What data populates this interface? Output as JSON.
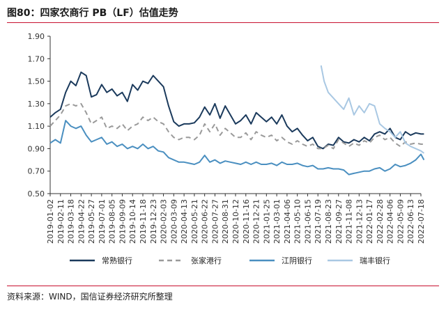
{
  "title": "图80：四家农商行 PB（LF）估值走势",
  "source": "资料来源：WIND，国信证券经济研究所整理",
  "chart_data": {
    "type": "line",
    "title": "图80：四家农商行 PB（LF）估值走势",
    "xlabel": "",
    "ylabel": "",
    "ylim": [
      0.5,
      1.9
    ],
    "yticks": [
      "0.50",
      "0.70",
      "0.90",
      "1.10",
      "1.30",
      "1.50",
      "1.70",
      "1.90"
    ],
    "grid": false,
    "legend_position": "bottom",
    "x_ticks": [
      "2019-01-02",
      "2019-02-11",
      "2019-03-18",
      "2019-04-22",
      "2019-05-27",
      "2019-07-01",
      "2019-08-05",
      "2019-09-09",
      "2019-10-14",
      "2019-11-18",
      "2019-12-23",
      "2020-02-03",
      "2020-03-09",
      "2020-04-13",
      "2020-05-21",
      "2020-06-22",
      "2020-07-27",
      "2020-08-31",
      "2020-10-12",
      "2020-11-16",
      "2020-12-21",
      "2021-01-25",
      "2021-03-01",
      "2021-04-06",
      "2021-05-10",
      "2021-06-15",
      "2021-07-19",
      "2021-08-23",
      "2021-09-27",
      "2021-11-08",
      "2021-12-13",
      "2022-01-17",
      "2022-02-28",
      "2022-04-06",
      "2022-05-09",
      "2022-06-13",
      "2022-07-18"
    ],
    "series": [
      {
        "name": "常熟银行",
        "color": "#1b3a5c",
        "dash": "solid",
        "x": [
          0,
          0.5,
          1,
          1.5,
          2,
          2.5,
          3,
          3.5,
          4,
          4.5,
          5,
          5.5,
          6,
          6.5,
          7,
          7.5,
          8,
          8.5,
          9,
          9.5,
          10,
          10.5,
          11,
          11.5,
          12,
          12.5,
          13,
          13.5,
          14,
          14.5,
          15,
          15.5,
          16,
          16.5,
          17,
          17.5,
          18,
          18.5,
          19,
          19.5,
          20,
          20.5,
          21,
          21.5,
          22,
          22.5,
          23,
          23.5,
          24,
          24.5,
          25,
          25.5,
          26,
          26.5,
          27,
          27.5,
          28,
          28.5,
          29,
          29.5,
          30,
          30.5,
          31,
          31.5,
          32,
          32.5,
          33,
          33.5,
          34,
          34.5,
          35,
          35.5,
          36,
          36.3
        ],
        "y": [
          1.18,
          1.22,
          1.25,
          1.4,
          1.5,
          1.46,
          1.58,
          1.55,
          1.36,
          1.38,
          1.47,
          1.4,
          1.43,
          1.37,
          1.4,
          1.32,
          1.47,
          1.42,
          1.5,
          1.48,
          1.55,
          1.5,
          1.45,
          1.28,
          1.14,
          1.1,
          1.12,
          1.12,
          1.13,
          1.18,
          1.27,
          1.2,
          1.3,
          1.17,
          1.28,
          1.2,
          1.12,
          1.15,
          1.2,
          1.12,
          1.22,
          1.18,
          1.14,
          1.18,
          1.12,
          1.2,
          1.1,
          1.05,
          1.08,
          1.02,
          0.97,
          1.0,
          0.92,
          0.9,
          0.94,
          0.93,
          1.0,
          0.96,
          0.95,
          0.98,
          0.96,
          1.0,
          0.97,
          1.03,
          1.05,
          1.03,
          1.08,
          1.0,
          0.98,
          1.05,
          1.02,
          1.04,
          1.03,
          1.03
        ]
      },
      {
        "name": "张家港行",
        "color": "#9a9a9a",
        "dash": "dashed",
        "x": [
          0,
          0.5,
          1,
          1.5,
          2,
          2.5,
          3,
          3.5,
          4,
          4.5,
          5,
          5.5,
          6,
          6.5,
          7,
          7.5,
          8,
          8.5,
          9,
          9.5,
          10,
          10.5,
          11,
          11.5,
          12,
          12.5,
          13,
          13.5,
          14,
          14.5,
          15,
          15.5,
          16,
          16.5,
          17,
          17.5,
          18,
          18.5,
          19,
          19.5,
          20,
          20.5,
          21,
          21.5,
          22,
          22.5,
          23,
          23.5,
          24,
          24.5,
          25,
          25.5,
          26,
          26.5,
          27,
          27.5,
          28,
          28.5,
          29,
          29.5,
          30,
          30.5,
          31,
          31.5,
          32,
          32.5,
          33,
          33.5,
          34,
          34.5,
          35,
          35.5,
          36,
          36.3
        ],
        "y": [
          1.1,
          1.15,
          1.2,
          1.28,
          1.3,
          1.28,
          1.3,
          1.22,
          1.12,
          1.15,
          1.18,
          1.08,
          1.1,
          1.08,
          1.12,
          1.06,
          1.1,
          1.12,
          1.18,
          1.15,
          1.18,
          1.14,
          1.12,
          1.05,
          1.0,
          0.98,
          1.0,
          1.0,
          0.98,
          1.02,
          1.12,
          1.05,
          1.12,
          1.02,
          1.08,
          1.04,
          1.0,
          1.0,
          1.04,
          0.98,
          1.05,
          1.02,
          1.0,
          1.02,
          0.97,
          1.0,
          0.96,
          0.94,
          0.97,
          0.94,
          0.92,
          0.94,
          0.9,
          0.9,
          0.93,
          0.9,
          0.98,
          0.95,
          0.92,
          0.95,
          0.93,
          0.97,
          0.95,
          1.0,
          1.02,
          0.98,
          1.0,
          0.95,
          0.92,
          0.96,
          0.94,
          0.95,
          0.94,
          0.94
        ]
      },
      {
        "name": "江阴银行",
        "color": "#4a8fc0",
        "dash": "solid",
        "x": [
          0,
          0.5,
          1,
          1.5,
          2,
          2.5,
          3,
          3.5,
          4,
          4.5,
          5,
          5.5,
          6,
          6.5,
          7,
          7.5,
          8,
          8.5,
          9,
          9.5,
          10,
          10.5,
          11,
          11.5,
          12,
          12.5,
          13,
          13.5,
          14,
          14.5,
          15,
          15.5,
          16,
          16.5,
          17,
          17.5,
          18,
          18.5,
          19,
          19.5,
          20,
          20.5,
          21,
          21.5,
          22,
          22.5,
          23,
          23.5,
          24,
          24.5,
          25,
          25.5,
          26,
          26.5,
          27,
          27.5,
          28,
          28.5,
          29,
          29.5,
          30,
          30.5,
          31,
          31.5,
          32,
          32.5,
          33,
          33.5,
          34,
          34.5,
          35,
          35.5,
          36,
          36.3
        ],
        "y": [
          0.95,
          0.98,
          0.95,
          1.15,
          1.1,
          1.08,
          1.1,
          1.02,
          0.96,
          0.98,
          1.0,
          0.94,
          0.96,
          0.92,
          0.94,
          0.9,
          0.92,
          0.9,
          0.94,
          0.9,
          0.92,
          0.88,
          0.87,
          0.82,
          0.8,
          0.78,
          0.78,
          0.77,
          0.76,
          0.78,
          0.84,
          0.78,
          0.8,
          0.77,
          0.79,
          0.78,
          0.77,
          0.76,
          0.78,
          0.76,
          0.78,
          0.76,
          0.76,
          0.77,
          0.75,
          0.78,
          0.76,
          0.76,
          0.77,
          0.75,
          0.74,
          0.75,
          0.72,
          0.72,
          0.73,
          0.72,
          0.72,
          0.71,
          0.67,
          0.68,
          0.69,
          0.7,
          0.7,
          0.72,
          0.73,
          0.7,
          0.72,
          0.76,
          0.74,
          0.75,
          0.77,
          0.8,
          0.85,
          0.8
        ]
      },
      {
        "name": "瑞丰银行",
        "color": "#a9c8e3",
        "dash": "solid",
        "x": [
          26.3,
          26.6,
          27,
          27.5,
          28,
          28.5,
          29,
          29.5,
          30,
          30.5,
          31,
          31.5,
          32,
          32.5,
          33,
          33.5,
          34,
          34.5,
          35,
          35.5,
          36,
          36.3
        ],
        "y": [
          1.64,
          1.5,
          1.4,
          1.35,
          1.3,
          1.25,
          1.35,
          1.2,
          1.28,
          1.22,
          1.3,
          1.28,
          1.12,
          1.08,
          1.05,
          1.0,
          1.05,
          0.95,
          0.92,
          0.9,
          0.88,
          0.86
        ]
      }
    ]
  }
}
